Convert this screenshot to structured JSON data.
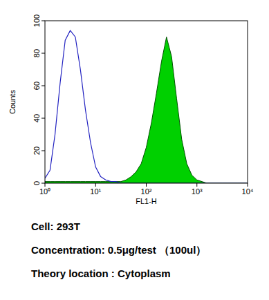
{
  "chart_data": {
    "type": "line",
    "x_label": "FL1-H",
    "y_label": "Counts",
    "log": "x",
    "x": [
      1,
      1.26,
      1.58,
      2,
      2.51,
      3.16,
      3.98,
      5.01,
      6.31,
      7.94,
      10,
      12.6,
      15.8,
      20,
      25.1,
      31.6,
      39.8,
      50.1,
      63.1,
      79.4,
      100,
      126,
      158,
      200,
      251,
      316,
      398,
      501,
      631,
      794,
      1000,
      1260,
      1580,
      2000,
      2510,
      3160,
      3980,
      5010,
      6310,
      7940,
      10000
    ],
    "series": [
      {
        "type": "area",
        "color": "#00d000",
        "values": [
          1,
          1,
          1,
          1,
          1,
          1,
          1,
          1,
          1,
          1,
          1,
          1,
          1,
          1,
          1,
          1,
          2,
          4,
          7,
          12,
          22,
          37,
          55,
          75,
          90,
          78,
          52,
          27,
          12,
          5,
          2,
          1,
          0,
          0,
          0,
          0,
          0,
          0,
          0,
          0,
          0
        ]
      },
      {
        "type": "line",
        "color": "#2020c0",
        "values": [
          3,
          8,
          30,
          62,
          88,
          94,
          90,
          70,
          45,
          25,
          10,
          4,
          2,
          1,
          1,
          0,
          0,
          0,
          0,
          0,
          0,
          0,
          0,
          0,
          0,
          0,
          0,
          0,
          0,
          0,
          0,
          0,
          0,
          0,
          0,
          0,
          0,
          0,
          0,
          0,
          0
        ]
      }
    ],
    "xlim": [
      1,
      10000
    ],
    "xticks": [
      {
        "value": 1,
        "label": "10⁰"
      },
      {
        "value": 10,
        "label": "10¹"
      },
      {
        "value": 100,
        "label": "10²"
      },
      {
        "value": 1000,
        "label": "10³"
      },
      {
        "value": 10000,
        "label": "10⁴"
      }
    ],
    "ylim": [
      0,
      100
    ],
    "yticks": [
      0,
      20,
      40,
      60,
      80,
      100
    ],
    "annotations": [
      "Cell: 293T",
      "Concentration: 0.5μg/test （100ul）",
      "Theory location : Cytoplasm"
    ]
  }
}
